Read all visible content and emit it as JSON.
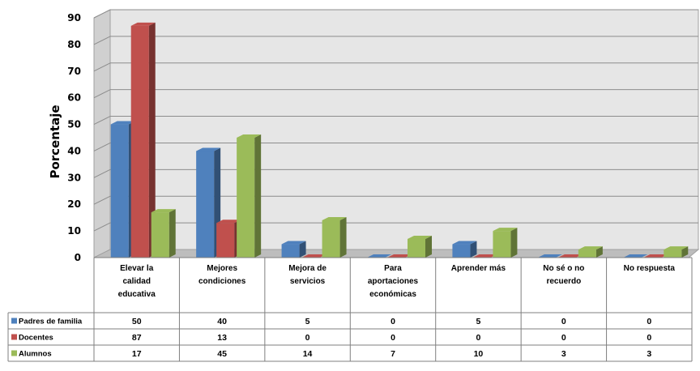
{
  "chart_data": {
    "type": "bar",
    "style": "3d-clustered-column-with-data-table",
    "ylabel": "Porcentaje",
    "ylim": [
      0,
      90
    ],
    "yticks": [
      "0",
      "10",
      "20",
      "30",
      "40",
      "50",
      "60",
      "70",
      "80",
      "90"
    ],
    "grid": true,
    "categories": [
      [
        "Elevar la",
        "calidad",
        "educativa"
      ],
      [
        "Mejores",
        "condiciones"
      ],
      [
        "Mejora de",
        "servicios"
      ],
      [
        "Para",
        "aportaciones",
        "económicas"
      ],
      [
        "Aprender más"
      ],
      [
        "No sé o no",
        "recuerdo"
      ],
      [
        "No respuesta"
      ]
    ],
    "series": [
      {
        "name": "Padres de familia",
        "color": "#4f81bd",
        "values": [
          50,
          40,
          5,
          0,
          5,
          0,
          0
        ]
      },
      {
        "name": "Docentes",
        "color": "#c0504d",
        "values": [
          87,
          13,
          0,
          0,
          0,
          0,
          0
        ]
      },
      {
        "name": "Alumnos",
        "color": "#9bbb59",
        "values": [
          17,
          45,
          14,
          7,
          10,
          3,
          3
        ]
      }
    ]
  }
}
